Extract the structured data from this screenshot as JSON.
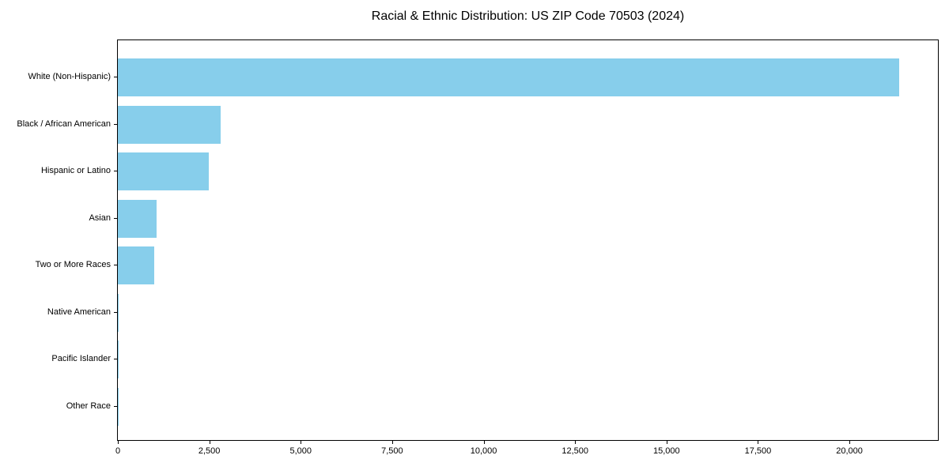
{
  "chart_data": {
    "type": "bar",
    "orientation": "horizontal",
    "title": "Racial & Ethnic Distribution: US ZIP Code 70503 (2024)",
    "categories": [
      "White (Non-Hispanic)",
      "Black / African American",
      "Hispanic or Latino",
      "Asian",
      "Two or More Races",
      "Native American",
      "Pacific Islander",
      "Other Race"
    ],
    "values": [
      21350,
      2810,
      2480,
      1050,
      990,
      30,
      10,
      5
    ],
    "x_ticks": [
      {
        "value": 0,
        "label": "0"
      },
      {
        "value": 2500,
        "label": "2,500"
      },
      {
        "value": 5000,
        "label": "5,000"
      },
      {
        "value": 7500,
        "label": "7,500"
      },
      {
        "value": 10000,
        "label": "10,000"
      },
      {
        "value": 12500,
        "label": "12,500"
      },
      {
        "value": 15000,
        "label": "15,000"
      },
      {
        "value": 17500,
        "label": "17,500"
      },
      {
        "value": 20000,
        "label": "20,000"
      }
    ],
    "xlim": [
      0,
      22420
    ],
    "xlabel": "",
    "ylabel": "",
    "bar_color": "#87CEEB",
    "grid": false,
    "legend_position": "none"
  }
}
